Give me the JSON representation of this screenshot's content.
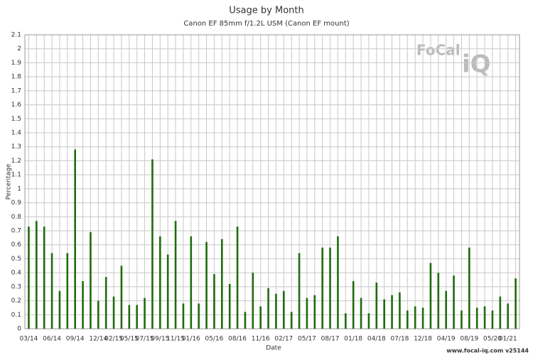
{
  "chart_data": {
    "type": "bar",
    "title": "Usage by Month",
    "subtitle": "Canon EF 85mm f/1.2L USM (Canon EF mount)",
    "x_label": "Date",
    "y_label": "Percentage",
    "footer": "www.focal-iq.com  v25144",
    "logo": [
      "FoCal",
      "iQ"
    ],
    "color": "#1f6b0d",
    "grid": true,
    "categories": [
      "03/14",
      null,
      null,
      "06/14",
      null,
      null,
      "09/14",
      null,
      null,
      "12/14",
      null,
      "02/15",
      null,
      "05/15",
      null,
      "07/15",
      null,
      "09/15",
      null,
      "11/15",
      null,
      "01/16",
      null,
      null,
      "05/16",
      null,
      null,
      "08/16",
      null,
      null,
      "11/16",
      null,
      null,
      "02/17",
      null,
      null,
      "05/17",
      null,
      null,
      "08/17",
      null,
      null,
      "01/18",
      null,
      null,
      "04/18",
      null,
      null,
      "07/18",
      null,
      null,
      "12/18",
      null,
      null,
      "04/19",
      null,
      null,
      "08/19",
      null,
      null,
      "05/20",
      null,
      "01/21",
      null
    ],
    "values": [
      0.73,
      0.77,
      0.73,
      0.54,
      0.27,
      0.54,
      1.28,
      0.34,
      0.69,
      0.2,
      0.37,
      0.23,
      0.45,
      0.17,
      0.17,
      0.22,
      1.21,
      0.66,
      0.53,
      0.77,
      0.18,
      0.66,
      0.18,
      0.62,
      0.39,
      0.64,
      0.32,
      0.73,
      0.12,
      0.4,
      0.16,
      0.29,
      0.25,
      0.27,
      0.12,
      0.54,
      0.22,
      0.24,
      0.58,
      0.58,
      0.66,
      0.11,
      0.34,
      0.22,
      0.11,
      0.33,
      0.21,
      0.24,
      0.26,
      0.13,
      0.16,
      0.15,
      0.47,
      0.4,
      0.27,
      0.38,
      0.13,
      0.58,
      0.15,
      0.16,
      0.13,
      0.23,
      0.18,
      0.36
    ],
    "ylim": [
      0,
      2.1
    ],
    "yticks": [
      0,
      0.1,
      0.2,
      0.3,
      0.4,
      0.5,
      0.6,
      0.7,
      0.8,
      0.9,
      1,
      1.1,
      1.2,
      1.3,
      1.4,
      1.5,
      1.6,
      1.7,
      1.8,
      1.9,
      2,
      2.1
    ]
  }
}
